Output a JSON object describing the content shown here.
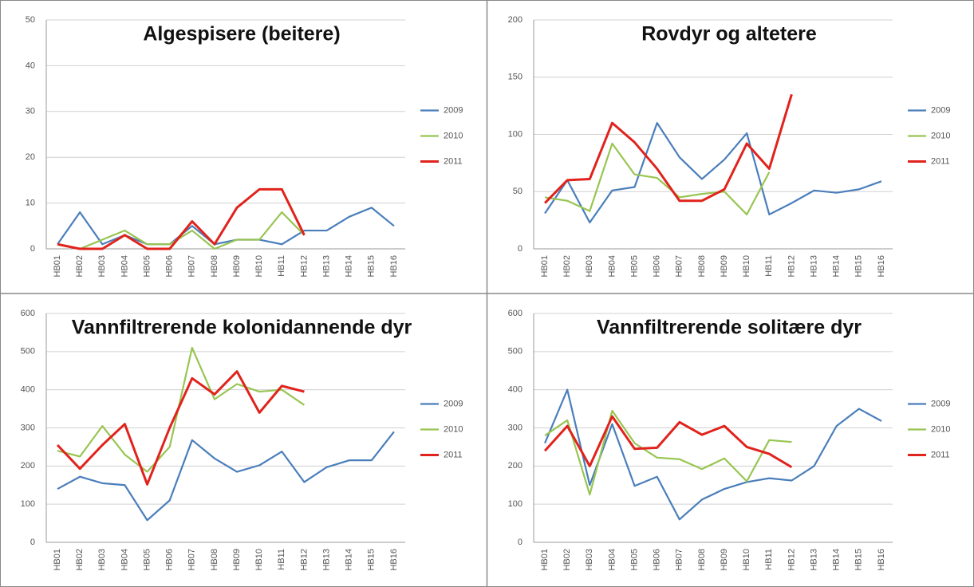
{
  "chart_data": [
    {
      "type": "line",
      "title": "Algespisere (beitere)",
      "categories": [
        "HB01",
        "HB02",
        "HB03",
        "HB04",
        "HB05",
        "HB06",
        "HB07",
        "HB08",
        "HB09",
        "HB10",
        "HB11",
        "HB12",
        "HB13",
        "HB14",
        "HB15",
        "HB16"
      ],
      "series": [
        {
          "name": "2009",
          "color": "#4a7ebb",
          "values": [
            1,
            8,
            1,
            3,
            1,
            1,
            5,
            1,
            2,
            2,
            1,
            4,
            4,
            7,
            9,
            5
          ]
        },
        {
          "name": "2010",
          "color": "#98c552",
          "values": [
            1,
            0,
            2,
            4,
            1,
            1,
            4,
            0,
            2,
            2,
            8,
            3,
            null,
            null,
            null,
            null
          ]
        },
        {
          "name": "2011",
          "color": "#e0231c",
          "values": [
            1,
            0,
            0,
            3,
            0,
            0,
            6,
            1,
            9,
            13,
            13,
            3,
            null,
            null,
            null,
            null
          ]
        }
      ],
      "ylim": [
        0,
        50
      ],
      "yticks": [
        0,
        10,
        20,
        30,
        40,
        50
      ],
      "grid": true
    },
    {
      "type": "line",
      "title": "Rovdyr og altetere",
      "categories": [
        "HB01",
        "HB02",
        "HB03",
        "HB04",
        "HB05",
        "HB06",
        "HB07",
        "HB08",
        "HB09",
        "HB10",
        "HB11",
        "HB12",
        "HB13",
        "HB14",
        "HB15",
        "HB16"
      ],
      "series": [
        {
          "name": "2009",
          "color": "#4a7ebb",
          "values": [
            31,
            60,
            23,
            51,
            54,
            110,
            80,
            61,
            78,
            101,
            30,
            40,
            51,
            49,
            52,
            59
          ]
        },
        {
          "name": "2010",
          "color": "#98c552",
          "values": [
            45,
            42,
            33,
            92,
            65,
            62,
            45,
            48,
            50,
            30,
            67,
            null,
            null,
            null,
            null,
            null
          ]
        },
        {
          "name": "2011",
          "color": "#e0231c",
          "values": [
            40,
            60,
            61,
            110,
            93,
            70,
            42,
            42,
            52,
            92,
            70,
            135,
            null,
            null,
            null,
            null
          ]
        }
      ],
      "ylim": [
        0,
        200
      ],
      "yticks": [
        0,
        50,
        100,
        150,
        200
      ],
      "grid": true
    },
    {
      "type": "line",
      "title": "Vannfiltrerende kolonidannende dyr",
      "categories": [
        "HB01",
        "HB02",
        "HB03",
        "HB04",
        "HB05",
        "HB06",
        "HB07",
        "HB08",
        "HB09",
        "HB10",
        "HB11",
        "HB12",
        "HB13",
        "HB14",
        "HB15",
        "HB16"
      ],
      "series": [
        {
          "name": "2009",
          "color": "#4a7ebb",
          "values": [
            140,
            172,
            155,
            150,
            58,
            110,
            268,
            220,
            185,
            202,
            238,
            158,
            197,
            215,
            215,
            290
          ]
        },
        {
          "name": "2010",
          "color": "#98c552",
          "values": [
            240,
            225,
            305,
            230,
            185,
            250,
            510,
            375,
            415,
            395,
            400,
            360,
            null,
            null,
            null,
            null
          ]
        },
        {
          "name": "2011",
          "color": "#e0231c",
          "values": [
            255,
            193,
            255,
            310,
            152,
            300,
            430,
            388,
            448,
            340,
            410,
            395,
            null,
            null,
            null,
            null
          ]
        }
      ],
      "ylim": [
        0,
        600
      ],
      "yticks": [
        0,
        100,
        200,
        300,
        400,
        500,
        600
      ],
      "grid": true
    },
    {
      "type": "line",
      "title": "Vannfiltrerende solitære dyr",
      "categories": [
        "HB01",
        "HB02",
        "HB03",
        "HB04",
        "HB05",
        "HB06",
        "HB07",
        "HB08",
        "HB09",
        "HB10",
        "HB11",
        "HB12",
        "HB13",
        "HB14",
        "HB15",
        "HB16"
      ],
      "series": [
        {
          "name": "2009",
          "color": "#4a7ebb",
          "values": [
            260,
            400,
            150,
            310,
            148,
            172,
            60,
            112,
            140,
            158,
            168,
            162,
            200,
            305,
            350,
            318
          ]
        },
        {
          "name": "2010",
          "color": "#98c552",
          "values": [
            280,
            320,
            125,
            345,
            260,
            222,
            218,
            192,
            220,
            160,
            268,
            263,
            null,
            null,
            null,
            null
          ]
        },
        {
          "name": "2011",
          "color": "#e0231c",
          "values": [
            240,
            305,
            200,
            330,
            245,
            248,
            315,
            282,
            305,
            250,
            232,
            197,
            null,
            null,
            null,
            null
          ]
        }
      ],
      "ylim": [
        0,
        600
      ],
      "yticks": [
        0,
        100,
        200,
        300,
        400,
        500,
        600
      ],
      "grid": true
    }
  ]
}
